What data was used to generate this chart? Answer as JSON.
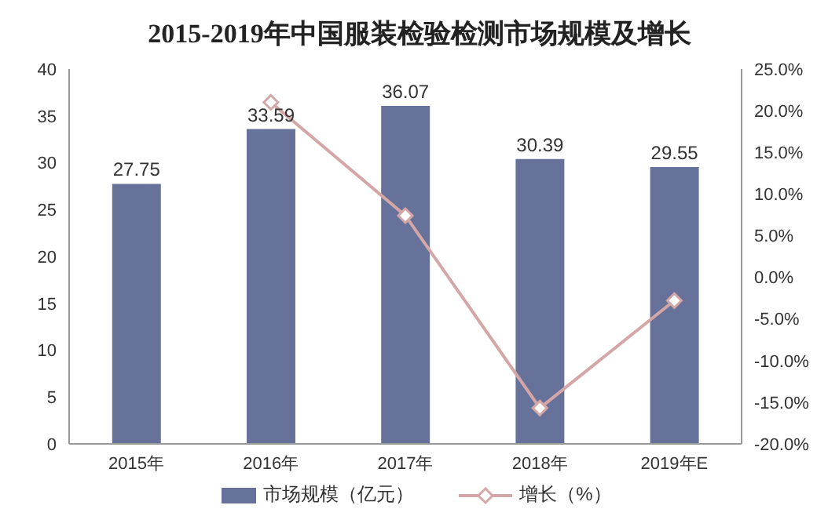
{
  "chart_data": {
    "type": "bar",
    "title": "2015-2019年中国服装检验检测市场规模及增长",
    "categories": [
      "2015年",
      "2016年",
      "2017年",
      "2018年",
      "2019年E"
    ],
    "series": [
      {
        "name": "市场规模（亿元）",
        "color": "#67729b",
        "values": [
          27.75,
          33.59,
          36.07,
          30.39,
          29.55
        ],
        "value_labels": [
          "27.75",
          "33.59",
          "36.07",
          "30.39",
          "29.55"
        ]
      },
      {
        "name": "增长（%）",
        "type": "line",
        "axis": "y2",
        "color": "#d4a6a6",
        "marker": "diamond",
        "values": [
          null,
          21.0,
          7.4,
          -15.7,
          -2.8
        ]
      }
    ],
    "ylim": [
      0,
      40
    ],
    "yticks": [
      0,
      5,
      10,
      15,
      20,
      25,
      30,
      35,
      40
    ],
    "y2lim": [
      -20,
      25
    ],
    "y2ticks": [
      {
        "value": -20,
        "label": "-20.0%"
      },
      {
        "value": -15,
        "label": "-15.0%"
      },
      {
        "value": -10,
        "label": "-10.0%"
      },
      {
        "value": -5,
        "label": "-5.0%"
      },
      {
        "value": 0,
        "label": "0.0%"
      },
      {
        "value": 5,
        "label": "5.0%"
      },
      {
        "value": 10,
        "label": "10.0%"
      },
      {
        "value": 15,
        "label": "15.0%"
      },
      {
        "value": 20,
        "label": "20.0%"
      },
      {
        "value": 25,
        "label": "25.0%"
      }
    ],
    "legend": "bottom",
    "grid": false
  }
}
